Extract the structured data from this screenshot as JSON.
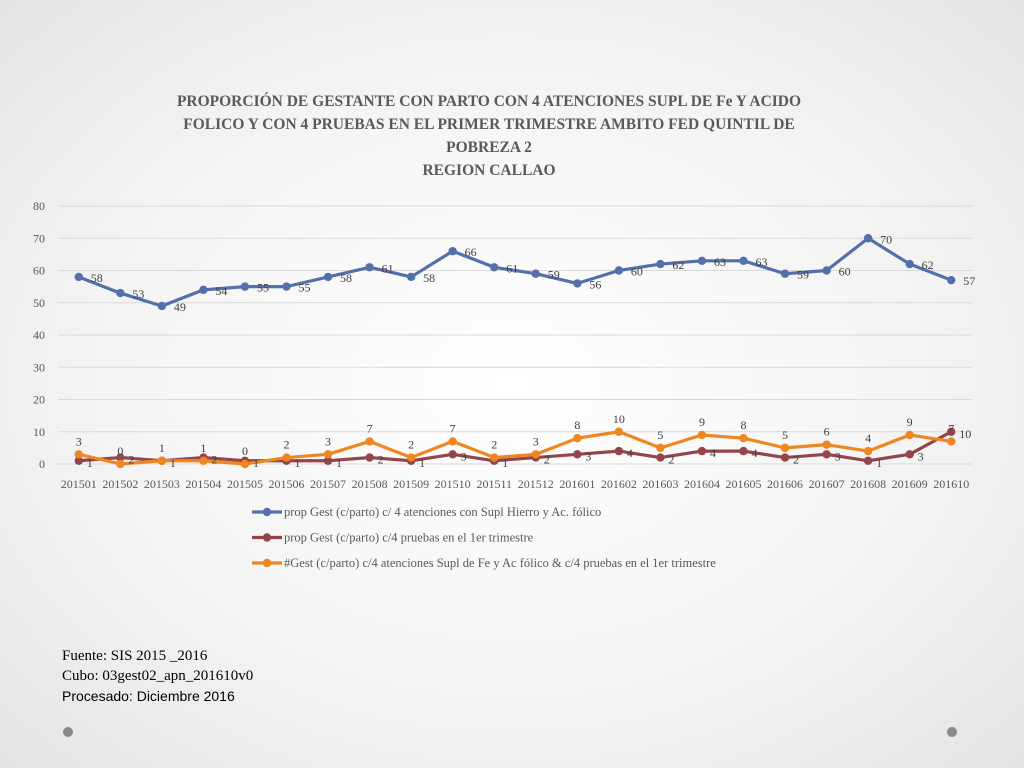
{
  "chart_data": {
    "type": "line",
    "title_lines": [
      "PROPORCIÓN DE GESTANTE  CON PARTO CON 4 ATENCIONES SUPL DE Fe Y ACIDO",
      "FOLICO  Y CON 4 PRUEBAS EN EL PRIMER TRIMESTRE AMBITO FED QUINTIL DE",
      "POBREZA 2",
      "REGION CALLAO"
    ],
    "categories": [
      "201501",
      "201502",
      "201503",
      "201504",
      "201505",
      "201506",
      "201507",
      "201508",
      "201509",
      "201510",
      "201511",
      "201512",
      "201601",
      "201602",
      "201603",
      "201604",
      "201605",
      "201606",
      "201607",
      "201608",
      "201609",
      "201610"
    ],
    "ylim": [
      0,
      80
    ],
    "yticks": [
      0,
      10,
      20,
      30,
      40,
      50,
      60,
      70,
      80
    ],
    "ytick_labels": [
      "0",
      "10",
      "20",
      "30",
      "40",
      "50",
      "60",
      "70",
      "80"
    ],
    "grid": true,
    "legend_position": "bottom",
    "series": [
      {
        "name": "prop Gest (c/parto) c/ 4 atenciones con Supl Hierro y Ac. fólico",
        "color": "#5470aa",
        "values": [
          58,
          53,
          49,
          54,
          55,
          55,
          58,
          61,
          58,
          66,
          61,
          59,
          56,
          60,
          62,
          63,
          63,
          59,
          60,
          70,
          62,
          57
        ],
        "labels": [
          "58",
          "53",
          "49",
          "54",
          "55",
          "55",
          "58",
          "61",
          "58",
          "66",
          "61",
          "59",
          "56",
          "60",
          "62",
          "63",
          "63",
          "59",
          "60",
          "70",
          "62",
          "57"
        ]
      },
      {
        "name": "prop Gest (c/parto) c/4 pruebas en el 1er trimestre",
        "color": "#93454a",
        "values": [
          1,
          2,
          1,
          2,
          1,
          1,
          1,
          2,
          1,
          3,
          1,
          2,
          3,
          4,
          2,
          4,
          4,
          2,
          3,
          1,
          3,
          10
        ],
        "labels": [
          "1",
          "2",
          "1",
          "2",
          "1",
          "1",
          "1",
          "2",
          "1",
          "3",
          "1",
          "2",
          "3",
          "4",
          "2",
          "4",
          "4",
          "2",
          "3",
          "1",
          "3",
          "10"
        ]
      },
      {
        "name": "#Gest (c/parto) c/4 atenciones Supl de Fe y Ac fólico & c/4 pruebas en el 1er trimestre",
        "color": "#ee8722",
        "values": [
          3,
          0,
          1,
          1,
          0,
          2,
          3,
          7,
          2,
          7,
          2,
          3,
          8,
          10,
          5,
          9,
          8,
          5,
          6,
          4,
          9,
          7
        ],
        "labels": [
          "3",
          "0",
          "1",
          "1",
          "0",
          "2",
          "3",
          "7",
          "2",
          "7",
          "2",
          "3",
          "8",
          "10",
          "5",
          "9",
          "8",
          "5",
          "6",
          "4",
          "9",
          "7"
        ]
      }
    ]
  },
  "footer": {
    "source": "Fuente: SIS 2015 _2016",
    "cube": "Cubo: 03gest02_apn_201610v0",
    "processed": "Procesado: Diciembre 2016"
  }
}
